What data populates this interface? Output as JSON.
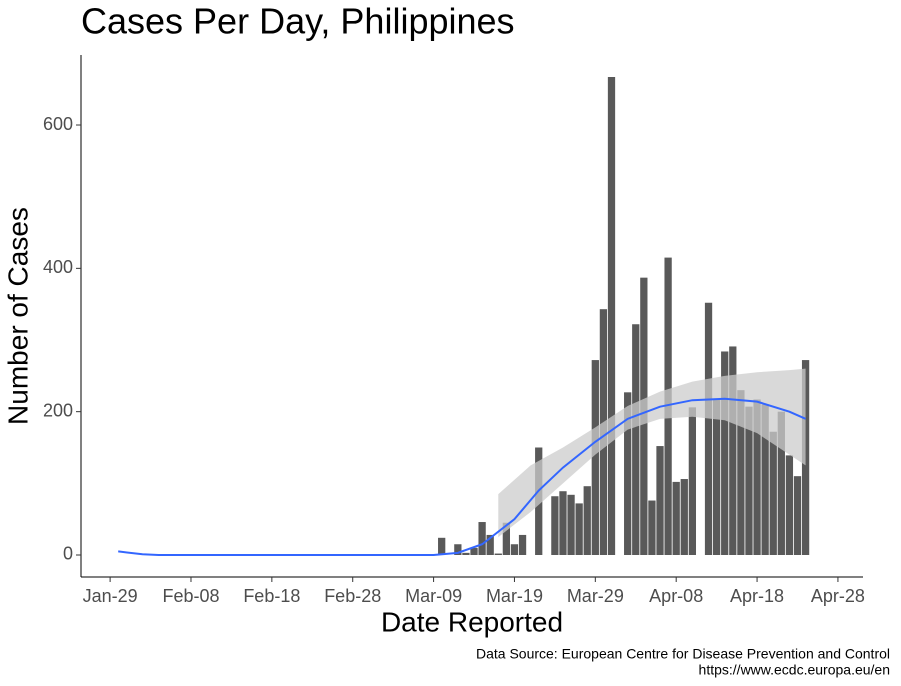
{
  "chart_data": {
    "type": "bar",
    "title": "Cases Per Day, Philippines",
    "x_label": "Date Reported",
    "y_label": "Number of Cases",
    "caption": [
      "Data Source: European Centre for Disease Prevention and Control",
      "https://www.ecdc.europa.eu/en"
    ],
    "x": [
      41,
      43,
      44,
      45,
      46,
      47,
      48,
      49,
      50,
      51,
      53,
      55,
      56,
      57,
      58,
      59,
      60,
      61,
      62,
      64,
      65,
      66,
      67,
      68,
      69,
      70,
      71,
      72,
      74,
      75,
      76,
      77,
      78,
      79,
      80,
      81,
      82,
      83,
      84,
      85,
      86
    ],
    "values": [
      24,
      15,
      3,
      10,
      46,
      28,
      2,
      45,
      15,
      28,
      150,
      82,
      89,
      84,
      72,
      96,
      272,
      343,
      667,
      227,
      322,
      387,
      76,
      152,
      415,
      102,
      106,
      206,
      352,
      218,
      284,
      291,
      230,
      207,
      217,
      210,
      172,
      200,
      139,
      110,
      272
    ],
    "color": "#595959",
    "smooth": {
      "color": "#3366ff",
      "x": [
        1,
        4,
        6,
        40,
        43,
        46,
        50,
        53,
        56,
        60,
        64,
        68,
        72,
        76,
        80,
        84,
        86
      ],
      "values": [
        5,
        1,
        0,
        0,
        3,
        15,
        50,
        90,
        122,
        158,
        190,
        207,
        216,
        218,
        214,
        200,
        190
      ]
    },
    "band": {
      "color": "#cccccc",
      "x": [
        48,
        52,
        56,
        60,
        64,
        68,
        72,
        76,
        80,
        84,
        86
      ],
      "lower": [
        25,
        60,
        100,
        140,
        175,
        190,
        193,
        188,
        170,
        140,
        125
      ],
      "upper": [
        85,
        125,
        150,
        178,
        208,
        228,
        242,
        250,
        255,
        258,
        260
      ]
    },
    "xlim": [
      -3.6,
      93.1
    ],
    "ylim": [
      -30.7,
      697.7
    ],
    "xticks": [
      {
        "value": 0,
        "label": "Jan-29"
      },
      {
        "value": 10,
        "label": "Feb-08"
      },
      {
        "value": 20,
        "label": "Feb-18"
      },
      {
        "value": 30,
        "label": "Feb-28"
      },
      {
        "value": 40,
        "label": "Mar-09"
      },
      {
        "value": 50,
        "label": "Mar-19"
      },
      {
        "value": 60,
        "label": "Mar-29"
      },
      {
        "value": 70,
        "label": "Apr-08"
      },
      {
        "value": 80,
        "label": "Apr-18"
      },
      {
        "value": 90,
        "label": "Apr-28"
      }
    ],
    "yticks": [
      0,
      200,
      400,
      600
    ],
    "grid": false
  }
}
